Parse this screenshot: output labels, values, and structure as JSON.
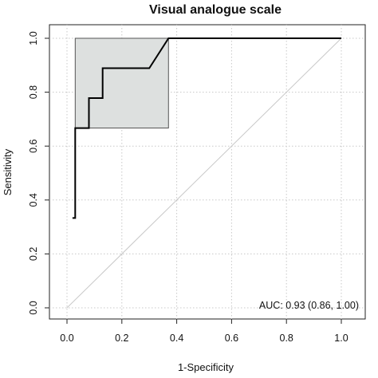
{
  "chart_data": {
    "type": "line",
    "title": "Visual analogue scale",
    "xlabel": "1-Specificity",
    "ylabel": "Sensitivity",
    "xlim": [
      0,
      1
    ],
    "ylim": [
      0,
      1
    ],
    "grid": true,
    "x_ticks": [
      "0.0",
      "0.2",
      "0.4",
      "0.6",
      "0.8",
      "1.0"
    ],
    "y_ticks": [
      "0.0",
      "0.2",
      "0.4",
      "0.6",
      "0.8",
      "1.0"
    ],
    "series": [
      {
        "x": [
          0.02,
          0.03,
          0.03,
          0.03,
          0.08,
          0.08,
          0.13,
          0.13,
          0.3,
          0.37,
          1.0
        ],
        "y": [
          0.333,
          0.333,
          0.444,
          0.667,
          0.667,
          0.778,
          0.778,
          0.889,
          0.889,
          1.0,
          1.0
        ]
      }
    ],
    "diagonal": {
      "x": [
        0,
        1
      ],
      "y": [
        0,
        1
      ]
    },
    "ci_box": {
      "x": [
        0.03,
        0.37
      ],
      "y": [
        0.667,
        1.0
      ]
    },
    "annotation": "AUC: 0.93 (0.86, 1.00)"
  }
}
